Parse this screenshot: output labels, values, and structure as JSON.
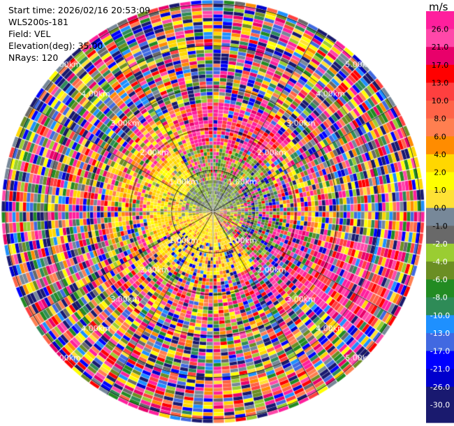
{
  "header": {
    "start_time": "Start time: 2026/02/16 20:53:09",
    "instrument": "WLS200s-181",
    "field": "Field: VEL",
    "elevation": "Elevation(deg): 35.00",
    "nrays": "NRays: 120"
  },
  "colorbar": {
    "unit": "m/s",
    "ticks": [
      "26.0",
      "21.0",
      "17.0",
      "13.0",
      "10.0",
      "8.0",
      "6.0",
      "4.0",
      "2.0",
      "1.0",
      "0.0",
      "-1.0",
      "-2.0",
      "-4.0",
      "-6.0",
      "-8.0",
      "-10.0",
      "-13.0",
      "-17.0",
      "-21.0",
      "-26.0",
      "-30.0"
    ],
    "colors": [
      "#ff1f9d",
      "#ff48a9",
      "#e8006a",
      "#ff0000",
      "#ff3f3f",
      "#ff6347",
      "#ff7f50",
      "#ff8c00",
      "#ffd700",
      "#ffff00",
      "#ffe135",
      "#778899",
      "#696969",
      "#9acd32",
      "#6b8e23",
      "#228b22",
      "#2e8b57",
      "#1e90ff",
      "#4169e1",
      "#0000ff",
      "#0000cd",
      "#191970",
      "#1a1a6e"
    ]
  },
  "chart_data": {
    "type": "heatmap",
    "subtype": "polar PPI (plan position indicator)",
    "field": "VEL",
    "units": "m/s",
    "n_rays": 120,
    "elevation_deg": 35.0,
    "range_ring_labels": [
      "1.00km",
      "2.00km",
      "3.00km",
      "4.00km",
      "5.00km"
    ],
    "range_rings_km": [
      1,
      2,
      3,
      4,
      5
    ],
    "max_range_km": 5.1,
    "color_range": [
      -30,
      26
    ],
    "pattern": {
      "near_field_km": 0.7,
      "near_north": "olive/gray (~ -2 to 0 m/s)",
      "near_south": "yellow (~ 2 to 4 m/s)",
      "mid_north": "red/magenta (~ 17 to 26 m/s)",
      "mid_west": "yellow/orange (~ 4 to 8 m/s)",
      "far_field": "noise across full color range"
    }
  }
}
